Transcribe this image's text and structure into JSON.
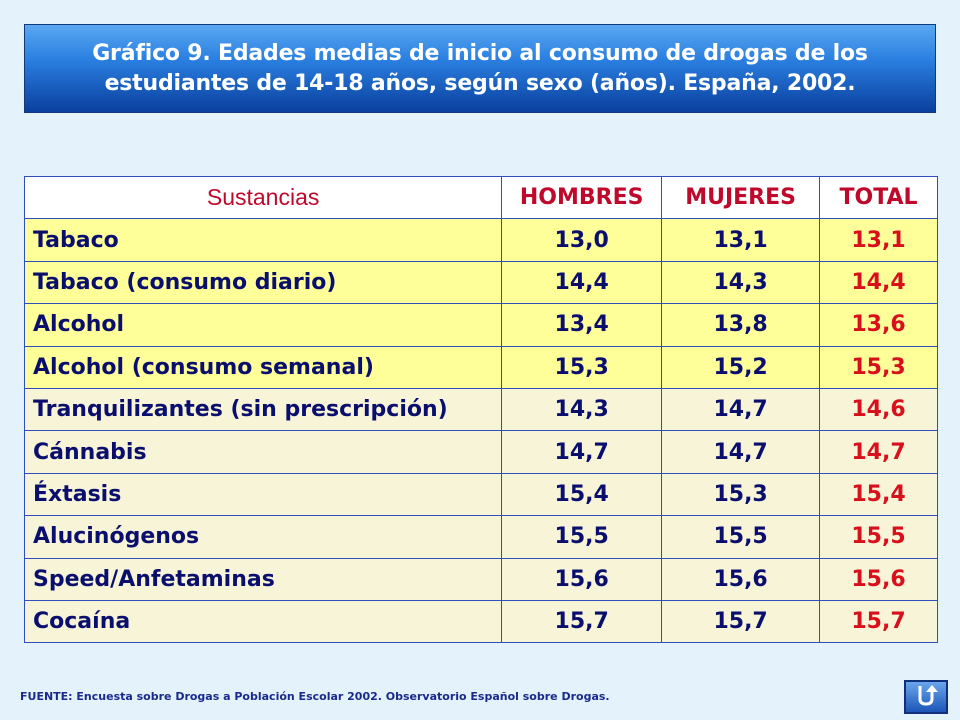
{
  "title": "Gráfico 9. Edades medias de inicio al consumo de drogas de los estudiantes de 14-18 años, según sexo (años). España, 2002.",
  "table": {
    "headers": [
      "Sustancias",
      "HOMBRES",
      "MUJERES",
      "TOTAL"
    ],
    "rows": [
      {
        "sustancia": "Tabaco",
        "hombres": "13,0",
        "mujeres": "13,1",
        "total": "13,1"
      },
      {
        "sustancia": "Tabaco (consumo diario)",
        "hombres": "14,4",
        "mujeres": "14,3",
        "total": "14,4"
      },
      {
        "sustancia": "Alcohol",
        "hombres": "13,4",
        "mujeres": "13,8",
        "total": "13,6"
      },
      {
        "sustancia": "Alcohol (consumo semanal)",
        "hombres": "15,3",
        "mujeres": "15,2",
        "total": "15,3"
      },
      {
        "sustancia": "Tranquilizantes (sin prescripción)",
        "hombres": "14,3",
        "mujeres": "14,7",
        "total": "14,6"
      },
      {
        "sustancia": "Cánnabis",
        "hombres": "14,7",
        "mujeres": "14,7",
        "total": "14,7"
      },
      {
        "sustancia": "Éxtasis",
        "hombres": "15,4",
        "mujeres": "15,3",
        "total": "15,4"
      },
      {
        "sustancia": "Alucinógenos",
        "hombres": "15,5",
        "mujeres": "15,5",
        "total": "15,5"
      },
      {
        "sustancia": "Speed/Anfetaminas",
        "hombres": "15,6",
        "mujeres": "15,6",
        "total": "15,6"
      },
      {
        "sustancia": "Cocaína",
        "hombres": "15,7",
        "mujeres": "15,7",
        "total": "15,7"
      }
    ]
  },
  "source": "FUENTE: Encuesta sobre Drogas a Población Escolar 2002. Observatorio Español sobre Drogas.",
  "nav_button": {
    "icon": "return-arrow-icon"
  },
  "colors": {
    "background": "#e3f2fb",
    "header_text": "#c0082b",
    "body_text": "#0a0f6e",
    "total_text": "#d8101c",
    "row_yellow": "#ffff99",
    "row_cream": "#f7f4d8",
    "border": "#2f4fbf"
  }
}
